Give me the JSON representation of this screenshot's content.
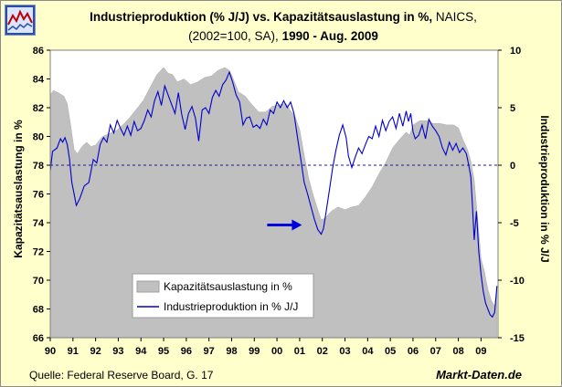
{
  "header": {
    "title_bold": "Industrieproduktion (% J/J) vs. Kapazitätsauslastung in %,",
    "title_rest": " NAICS,",
    "subtitle_plain": "(2002=100, SA),",
    "subtitle_bold": " 1990 - Aug. 2009"
  },
  "footer": {
    "source": "Quelle: Federal Reserve Board, G. 17",
    "brand": "Markt-Daten.de"
  },
  "chart_data": {
    "type": "area+line",
    "title": "Industrieproduktion (% J/J) vs. Kapazitätsauslastung in %, NAICS, (2002=100, SA), 1990 - Aug. 2009",
    "ylabel_left": "Kapazitätsauslastung in %",
    "ylabel_right": "Industrieproduktion in % J/J",
    "ylim_left": [
      66,
      86
    ],
    "yticks_left": [
      "66",
      "68",
      "70",
      "72",
      "74",
      "76",
      "78",
      "80",
      "82",
      "84",
      "86"
    ],
    "ylim_right": [
      -15,
      10
    ],
    "yticks_right": [
      "-15",
      "-10",
      "-5",
      "0",
      "5",
      "10"
    ],
    "xlim": [
      1990.0,
      2009.75
    ],
    "xticks": [
      "90",
      "91",
      "92",
      "93",
      "94",
      "95",
      "96",
      "97",
      "98",
      "99",
      "00",
      "01",
      "02",
      "03",
      "04",
      "05",
      "06",
      "07",
      "08",
      "09"
    ],
    "reference_line_right": 0,
    "legend": [
      "Kapazitätsauslastung in %",
      "Industrieproduktion in % J/J"
    ],
    "series": [
      {
        "name": "Kapazitätsauslastung in %",
        "axis": "left",
        "style": "area",
        "x": [
          1990.0,
          1990.15,
          1990.4,
          1990.6,
          1990.75,
          1990.9,
          1991.05,
          1991.2,
          1991.4,
          1991.6,
          1991.8,
          1992.0,
          1992.3,
          1992.6,
          1992.9,
          1993.2,
          1993.5,
          1993.8,
          1994.1,
          1994.4,
          1994.7,
          1995.0,
          1995.2,
          1995.4,
          1995.6,
          1995.9,
          1996.2,
          1996.5,
          1996.8,
          1997.1,
          1997.4,
          1997.7,
          1997.9,
          1998.05,
          1998.3,
          1998.6,
          1998.9,
          1999.2,
          1999.5,
          1999.8,
          2000.1,
          2000.4,
          2000.6,
          2000.8,
          2001.0,
          2001.2,
          2001.4,
          2001.6,
          2001.8,
          2001.95,
          2002.1,
          2002.4,
          2002.7,
          2003.0,
          2003.3,
          2003.6,
          2003.9,
          2004.2,
          2004.5,
          2004.8,
          2005.1,
          2005.4,
          2005.7,
          2005.85,
          2006.0,
          2006.3,
          2006.6,
          2006.9,
          2007.2,
          2007.5,
          2007.8,
          2008.0,
          2008.2,
          2008.4,
          2008.55,
          2008.7,
          2008.8,
          2008.9,
          2009.0,
          2009.15,
          2009.3,
          2009.45,
          2009.6,
          2009.7
        ],
        "values": [
          82.9,
          83.2,
          83.0,
          82.8,
          82.3,
          80.8,
          79.1,
          78.8,
          79.3,
          79.6,
          79.3,
          79.4,
          80.0,
          80.2,
          80.4,
          80.8,
          81.3,
          81.9,
          82.5,
          83.4,
          84.3,
          84.8,
          84.4,
          84.3,
          83.8,
          84.0,
          83.6,
          83.8,
          84.1,
          84.2,
          84.6,
          84.8,
          84.6,
          84.1,
          83.1,
          82.8,
          82.2,
          81.7,
          81.7,
          82.1,
          82.2,
          82.3,
          81.8,
          81.4,
          80.5,
          78.7,
          77.1,
          75.9,
          74.9,
          74.2,
          74.3,
          74.8,
          75.1,
          74.9,
          75.1,
          75.2,
          75.8,
          76.5,
          77.4,
          78.2,
          79.2,
          79.8,
          80.3,
          80.1,
          80.8,
          81.1,
          81.1,
          80.9,
          80.9,
          80.8,
          80.8,
          80.6,
          79.8,
          79.1,
          78.3,
          77.0,
          75.2,
          73.4,
          71.5,
          70.6,
          69.4,
          68.6,
          68.2,
          69.4
        ]
      },
      {
        "name": "Industrieproduktion in % J/J",
        "axis": "right",
        "style": "line",
        "x": [
          1990.0,
          1990.1,
          1990.3,
          1990.45,
          1990.55,
          1990.65,
          1990.75,
          1990.85,
          1990.95,
          1991.05,
          1991.15,
          1991.3,
          1991.5,
          1991.7,
          1991.9,
          1992.05,
          1992.2,
          1992.35,
          1992.5,
          1992.65,
          1992.8,
          1992.95,
          1993.1,
          1993.25,
          1993.4,
          1993.55,
          1993.7,
          1993.85,
          1994.0,
          1994.15,
          1994.3,
          1994.45,
          1994.6,
          1994.75,
          1994.9,
          1995.05,
          1995.2,
          1995.35,
          1995.5,
          1995.65,
          1995.8,
          1995.95,
          1996.1,
          1996.25,
          1996.4,
          1996.55,
          1996.7,
          1996.85,
          1997.0,
          1997.15,
          1997.3,
          1997.45,
          1997.6,
          1997.75,
          1997.9,
          1998.05,
          1998.2,
          1998.35,
          1998.5,
          1998.65,
          1998.8,
          1998.95,
          1999.1,
          1999.25,
          1999.4,
          1999.55,
          1999.7,
          1999.85,
          2000.0,
          2000.15,
          2000.3,
          2000.45,
          2000.6,
          2000.75,
          2000.9,
          2001.05,
          2001.2,
          2001.35,
          2001.5,
          2001.65,
          2001.8,
          2001.95,
          2002.05,
          2002.15,
          2002.3,
          2002.45,
          2002.6,
          2002.75,
          2002.9,
          2003.05,
          2003.15,
          2003.3,
          2003.45,
          2003.6,
          2003.75,
          2003.9,
          2004.05,
          2004.2,
          2004.35,
          2004.5,
          2004.65,
          2004.8,
          2004.95,
          2005.1,
          2005.25,
          2005.4,
          2005.55,
          2005.7,
          2005.8,
          2005.9,
          2006.0,
          2006.1,
          2006.25,
          2006.4,
          2006.55,
          2006.7,
          2006.85,
          2007.0,
          2007.15,
          2007.3,
          2007.45,
          2007.6,
          2007.75,
          2007.9,
          2008.05,
          2008.2,
          2008.35,
          2008.45,
          2008.55,
          2008.62,
          2008.7,
          2008.8,
          2008.9,
          2009.0,
          2009.1,
          2009.2,
          2009.3,
          2009.4,
          2009.5,
          2009.6,
          2009.7
        ],
        "values": [
          -0.5,
          1.2,
          1.5,
          2.3,
          2.0,
          2.4,
          1.8,
          0.5,
          -1.5,
          -2.5,
          -3.5,
          -2.9,
          -1.8,
          -1.5,
          0.5,
          0.2,
          1.8,
          2.4,
          2.0,
          3.5,
          2.8,
          3.9,
          3.2,
          2.6,
          3.4,
          2.6,
          3.8,
          3.0,
          3.2,
          3.9,
          4.8,
          4.2,
          5.6,
          6.4,
          5.2,
          6.9,
          6.1,
          5.3,
          4.5,
          6.3,
          4.4,
          3.1,
          4.5,
          5.1,
          4.1,
          2.1,
          4.8,
          5.0,
          4.5,
          5.9,
          6.5,
          6.0,
          7.0,
          7.4,
          8.1,
          7.2,
          6.1,
          5.5,
          3.5,
          4.1,
          4.2,
          3.3,
          3.5,
          3.2,
          4.0,
          3.5,
          4.8,
          4.5,
          5.5,
          5.0,
          5.6,
          5.0,
          5.5,
          4.5,
          2.5,
          0.5,
          -1.5,
          -2.5,
          -3.6,
          -4.7,
          -5.6,
          -6.0,
          -5.5,
          -4.3,
          -2.3,
          -0.3,
          1.3,
          2.6,
          3.5,
          2.4,
          0.8,
          -0.2,
          0.7,
          1.5,
          1.0,
          1.8,
          2.5,
          2.3,
          3.4,
          2.5,
          3.9,
          3.0,
          3.8,
          4.2,
          3.2,
          4.5,
          3.4,
          4.7,
          3.8,
          4.5,
          2.9,
          2.3,
          2.6,
          3.5,
          2.3,
          4.0,
          3.4,
          3.0,
          2.5,
          1.5,
          0.9,
          2.0,
          1.3,
          1.9,
          1.1,
          1.5,
          1.0,
          0.1,
          -1.0,
          -3.5,
          -6.5,
          -4.0,
          -7.5,
          -9.5,
          -11.0,
          -12.0,
          -12.5,
          -13.0,
          -13.2,
          -12.8,
          -10.5
        ]
      }
    ],
    "annotation": {
      "label": "arrow pointing right",
      "x": 2001.1,
      "y_right": -5.2,
      "color": "#0000dd"
    }
  }
}
